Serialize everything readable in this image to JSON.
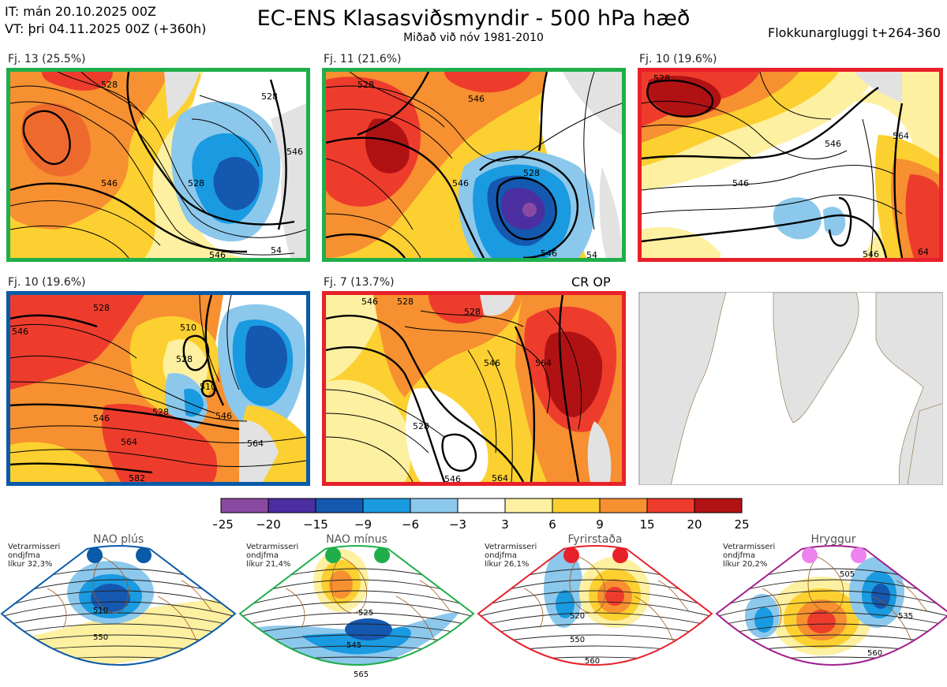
{
  "header": {
    "it_line": "IT: mán 20.10.2025 00Z",
    "vt_line": "VT: þri 04.11.2025 00Z  (+360h)",
    "title": "EC-ENS Klasasviðsmyndir - 500 hPa hæð",
    "subtitle": "Miðað við nóv 1981-2010",
    "window": "Flokkunargluggi t+264-360"
  },
  "colors": {
    "green": "#1fae4b",
    "red": "#e8202a",
    "blue": "#0a5aa8",
    "purple": "#a0208c",
    "magenta": "#ee82ee",
    "land": "#e2e2e2"
  },
  "panels": [
    {
      "label": "Fj. 13 (25.5%)",
      "frame": "green",
      "contours": [
        "528",
        "546",
        "528",
        "546",
        "546",
        "528",
        "54"
      ],
      "extra": ""
    },
    {
      "label": "Fj. 11 (21.6%)",
      "frame": "green",
      "contours": [
        "528",
        "546",
        "546",
        "546",
        "528",
        "54"
      ],
      "extra": ""
    },
    {
      "label": "Fj. 10 (19.6%)",
      "frame": "red",
      "contours": [
        "528",
        "546",
        "546",
        "564",
        "546",
        "64"
      ],
      "extra": ""
    },
    {
      "label": "Fj. 10 (19.6%)",
      "frame": "blue",
      "contours": [
        "546",
        "528",
        "510",
        "528",
        "510",
        "546",
        "528",
        "546",
        "564",
        "564",
        "582"
      ],
      "extra": ""
    },
    {
      "label": "Fj. 7 (13.7%)",
      "frame": "red",
      "contours": [
        "546",
        "528",
        "528",
        "546",
        "564",
        "528",
        "546",
        "564"
      ],
      "extra": "CR OP"
    }
  ],
  "chart_data": {
    "type": "heatmap",
    "title": "EC-ENS Klasasviðsmyndir - 500 hPa hæð",
    "subtitle": "Miðað við nóv 1981-2010",
    "colorbar": {
      "ticks": [
        "−25",
        "−20",
        "−15",
        "−9",
        "−6",
        "−3",
        "3",
        "6",
        "9",
        "15",
        "20",
        "25"
      ],
      "colors": [
        "#8a4aa2",
        "#4b2fa0",
        "#1558b0",
        "#1a9ae0",
        "#8cc8ec",
        "#ffffff",
        "#fdf0a0",
        "#fcd030",
        "#f79030",
        "#ee3c2c",
        "#b01214"
      ]
    },
    "clusters": [
      {
        "name": "Fj. 13",
        "probability": 25.5,
        "regime": "NAO mínus"
      },
      {
        "name": "Fj. 11",
        "probability": 21.6,
        "regime": "NAO mínus"
      },
      {
        "name": "Fj. 10",
        "probability": 19.6,
        "regime": "Fyrirstaða"
      },
      {
        "name": "Fj. 10",
        "probability": 19.6,
        "regime": "NAO plús"
      },
      {
        "name": "Fj. 7",
        "probability": 13.7,
        "regime": "Fyrirstaða"
      }
    ]
  },
  "regimes": [
    {
      "title": "NAO plús",
      "color": "blue",
      "dots": "blue",
      "note": [
        "Vetrarmisseri",
        "ondjfma",
        "líkur 32,3%"
      ],
      "contours": [
        "510",
        "550"
      ]
    },
    {
      "title": "NAO mínus",
      "color": "green",
      "dots": "green",
      "note": [
        "Vetrarmisseri",
        "ondjfma",
        "líkur 21,4%"
      ],
      "contours": [
        "525",
        "545",
        "565"
      ]
    },
    {
      "title": "Fyrirstaða",
      "color": "red",
      "dots": "red",
      "note": [
        "Vetrarmisseri",
        "ondjfma",
        "líkur 26,1%"
      ],
      "contours": [
        "520",
        "550",
        "560"
      ]
    },
    {
      "title": "Hryggur",
      "color": "purple",
      "dots": "magenta",
      "note": [
        "Vetrarmisseri",
        "ondjfma",
        "líkur 20,2%"
      ],
      "contours": [
        "505",
        "535",
        "560"
      ]
    }
  ]
}
